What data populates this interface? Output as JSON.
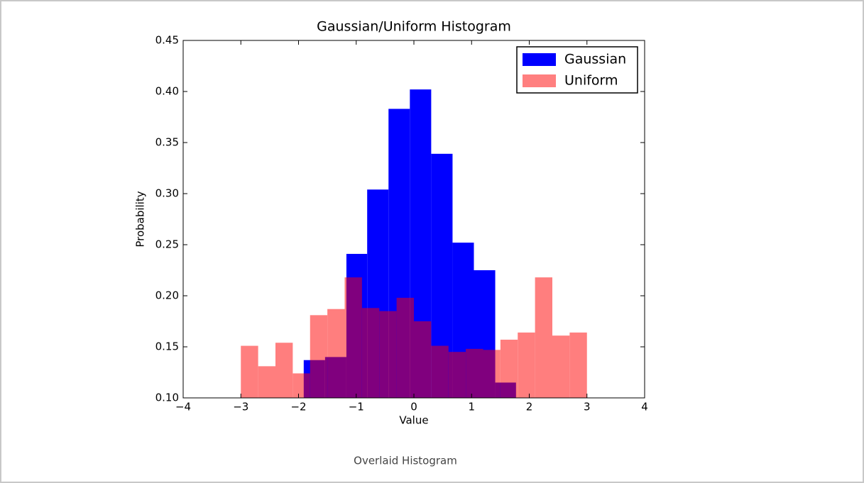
{
  "chart_data": {
    "type": "histogram",
    "title": "Gaussian/Uniform Histogram",
    "xlabel": "Value",
    "ylabel": "Probability",
    "series": [
      {
        "name": "Gaussian",
        "color": "#0000ff",
        "opacity": 1,
        "bins": [
          -1.91,
          -1.54,
          -1.17,
          -0.81,
          -0.44,
          -0.07,
          0.3,
          0.67,
          1.04,
          1.41,
          1.77
        ],
        "values": [
          0.137,
          0.14,
          0.241,
          0.304,
          0.383,
          0.402,
          0.339,
          0.252,
          0.225,
          0.115
        ]
      },
      {
        "name": "Uniform",
        "color": "#ff0000",
        "opacity": 0.5,
        "bins": [
          -3.0,
          -2.7,
          -2.4,
          -2.1,
          -1.8,
          -1.5,
          -1.2,
          -0.9,
          -0.6,
          -0.3,
          0.0,
          0.3,
          0.6,
          0.9,
          1.2,
          1.5,
          1.8,
          2.1,
          2.4,
          2.7,
          3.0
        ],
        "values": [
          0.151,
          0.131,
          0.154,
          0.124,
          0.181,
          0.187,
          0.218,
          0.188,
          0.185,
          0.198,
          0.175,
          0.151,
          0.145,
          0.148,
          0.147,
          0.157,
          0.164,
          0.218,
          0.161,
          0.164
        ]
      }
    ],
    "xlim": [
      -4,
      4
    ],
    "xticks": [
      {
        "value": -4,
        "label": "−4"
      },
      {
        "value": -3,
        "label": "−3"
      },
      {
        "value": -2,
        "label": "−2"
      },
      {
        "value": -1,
        "label": "−1"
      },
      0,
      1,
      2,
      3,
      4
    ],
    "ylim": [
      0.1,
      0.45
    ],
    "yticks": [
      {
        "value": 0.1,
        "label": "0.10"
      },
      0.15,
      {
        "value": 0.2,
        "label": "0.20"
      },
      0.25,
      {
        "value": 0.3,
        "label": "0.30"
      },
      0.35,
      {
        "value": 0.4,
        "label": "0.40"
      },
      0.45
    ],
    "legend": "upper right",
    "caption": "Overlaid Histogram"
  }
}
